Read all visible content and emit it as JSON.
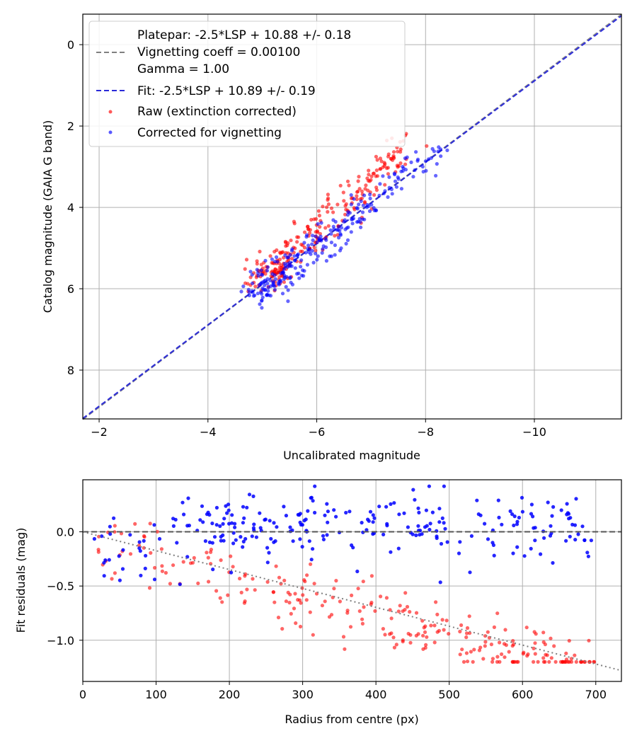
{
  "chart_data": [
    {
      "type": "scatter",
      "xlabel": "Uncalibrated magnitude",
      "ylabel": "Catalog magnitude (GAIA G band)",
      "xlim": [
        -1.7,
        -11.6
      ],
      "ylim": [
        9.2,
        -0.75
      ],
      "x_inverted": true,
      "y_inverted": true,
      "grid": true,
      "legend_position": "top-left",
      "xticks": [
        -2,
        -4,
        -6,
        -8,
        -10
      ],
      "yticks": [
        0,
        2,
        4,
        6,
        8
      ],
      "xtick_labels": [
        "−2",
        "−4",
        "−6",
        "−8",
        "−10"
      ],
      "ytick_labels": [
        "0",
        "2",
        "4",
        "6",
        "8"
      ],
      "lines": [
        {
          "legend_lines": [
            "Platepar: -2.5*LSP + 10.88 +/- 0.18",
            "Vignetting coeff = 0.00100",
            "Gamma = 1.00"
          ],
          "style": "dashed",
          "color": "#808080",
          "x": [
            -1.7,
            -11.6
          ],
          "y": [
            9.21,
            -0.74
          ]
        },
        {
          "name": "Fit: -2.5*LSP + 10.89 +/- 0.19",
          "style": "dashed",
          "color": "#2a2ad8",
          "x": [
            -1.7,
            -11.6
          ],
          "y": [
            9.19,
            -0.71
          ]
        }
      ],
      "series": [
        {
          "name": "Raw (extinction corrected)",
          "color": "#ff0000",
          "trend": {
            "x": [
              -5.0,
              -7.7
            ],
            "y": [
              5.8,
              2.6
            ]
          },
          "n_points": 260
        },
        {
          "name": "Corrected for vignetting",
          "color": "#0000ff",
          "trend": {
            "x": [
              -5.0,
              -8.4
            ],
            "y": [
              6.0,
              2.4
            ]
          },
          "n_points": 260
        }
      ],
      "notes": [
        "-5.7",
        "4.0",
        "-7.7",
        "2.3"
      ]
    },
    {
      "type": "scatter",
      "xlabel": "Radius from centre (px)",
      "ylabel": "Fit residuals (mag)",
      "xlim": [
        0,
        735
      ],
      "ylim": [
        -1.38,
        0.48
      ],
      "grid": true,
      "xticks": [
        0,
        100,
        200,
        300,
        400,
        500,
        600,
        700
      ],
      "yticks": [
        0.0,
        -0.5,
        -1.0
      ],
      "xtick_labels": [
        "0",
        "100",
        "200",
        "300",
        "400",
        "500",
        "600",
        "700"
      ],
      "ytick_labels": [
        "0.0",
        "−0.5",
        "−1.0"
      ],
      "lines": [
        {
          "style": "dashed",
          "color": "#555555",
          "x": [
            0,
            735
          ],
          "y": [
            0,
            0
          ]
        },
        {
          "style": "dotted",
          "color": "#808080",
          "x": [
            0,
            735
          ],
          "y": [
            0,
            -1.28
          ]
        }
      ],
      "series": [
        {
          "name": "Raw (extinction corrected)",
          "color": "#ff0000",
          "n_points": 260
        },
        {
          "name": "Corrected for vignetting",
          "color": "#0000ff",
          "n_points": 260
        }
      ]
    }
  ]
}
